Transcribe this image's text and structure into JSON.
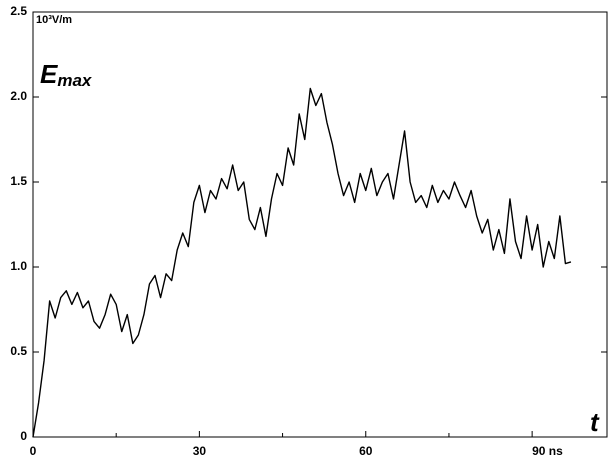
{
  "chart_data": {
    "type": "line",
    "y_unit": "10³V/m",
    "ylabel": "E",
    "ylabel_subscript": "max",
    "xlabel": "t",
    "x": [
      0,
      1,
      2,
      3,
      4,
      5,
      6,
      7,
      8,
      9,
      10,
      11,
      12,
      13,
      14,
      15,
      16,
      17,
      18,
      19,
      20,
      21,
      22,
      23,
      24,
      25,
      26,
      27,
      28,
      29,
      30,
      31,
      32,
      33,
      34,
      35,
      36,
      37,
      38,
      39,
      40,
      41,
      42,
      43,
      44,
      45,
      46,
      47,
      48,
      49,
      50,
      51,
      52,
      53,
      54,
      55,
      56,
      57,
      58,
      59,
      60,
      61,
      62,
      63,
      64,
      65,
      66,
      67,
      68,
      69,
      70,
      71,
      72,
      73,
      74,
      75,
      76,
      77,
      78,
      79,
      80,
      81,
      82,
      83,
      84,
      85,
      86,
      87,
      88,
      89,
      90,
      91,
      92,
      93,
      94,
      95,
      96,
      97
    ],
    "series": [
      {
        "name": "Emax",
        "color": "#000000",
        "values": [
          0,
          0.2,
          0.45,
          0.8,
          0.7,
          0.82,
          0.86,
          0.78,
          0.85,
          0.76,
          0.8,
          0.68,
          0.64,
          0.72,
          0.84,
          0.78,
          0.62,
          0.72,
          0.55,
          0.6,
          0.72,
          0.9,
          0.95,
          0.82,
          0.96,
          0.92,
          1.1,
          1.2,
          1.12,
          1.38,
          1.48,
          1.32,
          1.45,
          1.4,
          1.52,
          1.46,
          1.6,
          1.45,
          1.5,
          1.28,
          1.22,
          1.35,
          1.18,
          1.4,
          1.55,
          1.48,
          1.7,
          1.6,
          1.9,
          1.75,
          2.05,
          1.95,
          2.02,
          1.85,
          1.72,
          1.55,
          1.42,
          1.5,
          1.38,
          1.55,
          1.45,
          1.58,
          1.42,
          1.5,
          1.55,
          1.4,
          1.6,
          1.8,
          1.5,
          1.38,
          1.42,
          1.35,
          1.48,
          1.38,
          1.45,
          1.4,
          1.5,
          1.42,
          1.35,
          1.45,
          1.3,
          1.2,
          1.28,
          1.1,
          1.22,
          1.08,
          1.4,
          1.15,
          1.05,
          1.3,
          1.1,
          1.25,
          1.0,
          1.15,
          1.05,
          1.3,
          1.02,
          1.03
        ]
      }
    ],
    "xlim": [
      0,
      103.5
    ],
    "xticks": [
      0,
      30,
      60,
      {
        "value": 90,
        "label": "90 ns"
      }
    ],
    "xminorticks": [
      15,
      45,
      75
    ],
    "ylim": [
      0,
      2.5
    ],
    "yticks": [
      0,
      0.5,
      {
        "value": 1,
        "label": "1.0"
      },
      1.5,
      {
        "value": 2,
        "label": "2.0"
      },
      2.5
    ],
    "grid": false
  }
}
